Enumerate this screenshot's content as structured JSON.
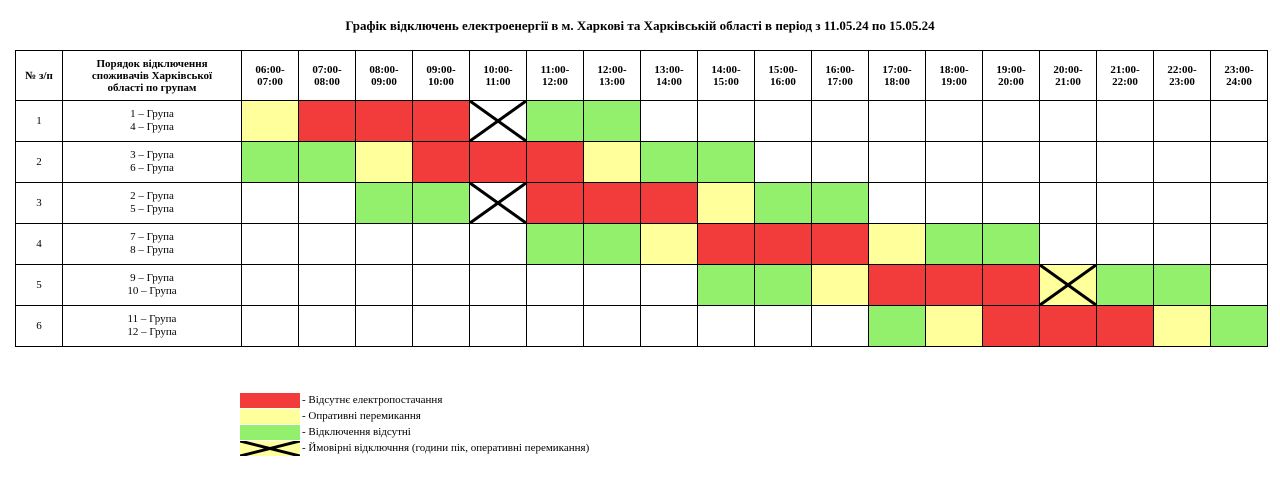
{
  "header": {
    "title": "Графік відключень електроенергії в м. Харкові та Харківській області в період з 11.05.24 по 15.05.24"
  },
  "table": {
    "columns": [
      "№ з/п",
      "Порядок відключення\nспоживачів Харківської\nобласті по групам",
      "06:00-\n07:00",
      "07:00-\n08:00",
      "08:00-\n09:00",
      "09:00-\n10:00",
      "10:00-\n11:00",
      "11:00-\n12:00",
      "12:00-\n13:00",
      "13:00-\n14:00",
      "14:00-\n15:00",
      "15:00-\n16:00",
      "16:00-\n17:00",
      "17:00-\n18:00",
      "18:00-\n19:00",
      "19:00-\n20:00",
      "20:00-\n21:00",
      "21:00-\n22:00",
      "22:00-\n23:00",
      "23:00-\n24:00"
    ],
    "rows": [
      {
        "number": "1",
        "groups": "1 – Група\n4 – Група",
        "cells": [
          1,
          0,
          0,
          0,
          3,
          2,
          2,
          null,
          null,
          null,
          null,
          null,
          null,
          null,
          null,
          null,
          null,
          null
        ]
      },
      {
        "number": "2",
        "groups": "3 – Група\n6 – Група",
        "cells": [
          2,
          2,
          1,
          0,
          0,
          0,
          1,
          2,
          2,
          null,
          null,
          null,
          null,
          null,
          null,
          null,
          null,
          null
        ]
      },
      {
        "number": "3",
        "groups": "2 – Група\n5 – Група",
        "cells": [
          null,
          null,
          2,
          2,
          3,
          0,
          0,
          0,
          1,
          2,
          2,
          null,
          null,
          null,
          null,
          null,
          null,
          null
        ]
      },
      {
        "number": "4",
        "groups": "7 – Група\n8 – Група",
        "cells": [
          null,
          null,
          null,
          null,
          null,
          2,
          2,
          1,
          0,
          0,
          0,
          1,
          2,
          2,
          null,
          null,
          null,
          null
        ]
      },
      {
        "number": "5",
        "groups": "9 – Група\n10 – Група",
        "cells": [
          null,
          null,
          null,
          null,
          null,
          null,
          null,
          null,
          2,
          2,
          1,
          0,
          0,
          0,
          [
            1,
            3
          ],
          2,
          2,
          null
        ]
      },
      {
        "number": "6",
        "groups": "11 – Група\n12 – Група",
        "cells": [
          null,
          null,
          null,
          null,
          null,
          null,
          null,
          null,
          null,
          null,
          null,
          2,
          1,
          0,
          0,
          0,
          1,
          2
        ]
      }
    ]
  },
  "legend": [
    {
      "color": "#f23b3b",
      "label": "- Відсутнє електропостачання"
    },
    {
      "color": "#ffff9c",
      "label": "- Опративні перемикання"
    },
    {
      "color": "#92f06c",
      "label": "- Відключення відсутні"
    },
    {
      "color": "#ffff9c",
      "cross": true,
      "label": "- Ймовірні відключння (години пік, оперативні перемикання)"
    }
  ]
}
